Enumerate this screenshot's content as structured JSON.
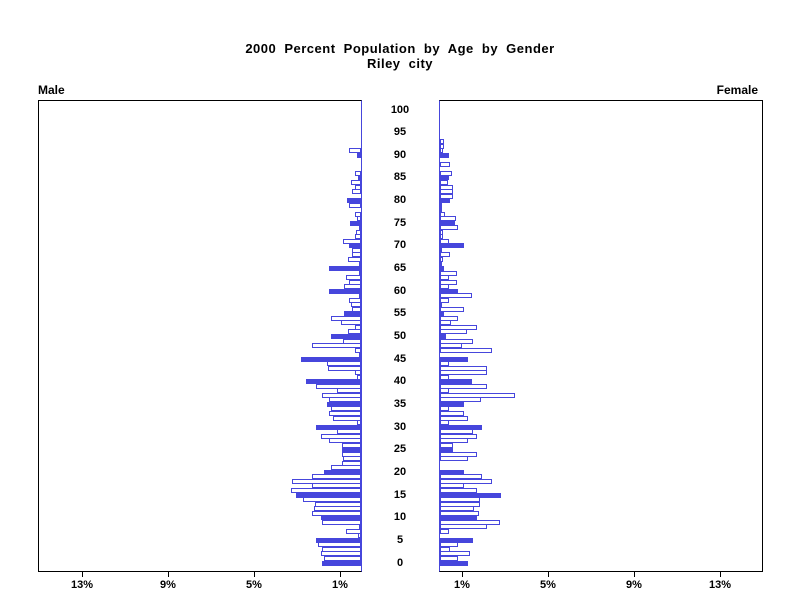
{
  "title": {
    "line1": "2000 Percent Population by Age by Gender",
    "line2": "Riley city"
  },
  "panels": {
    "male_label": "Male",
    "female_label": "Female"
  },
  "axes": {
    "age_tick_values": [
      0,
      5,
      10,
      15,
      20,
      25,
      30,
      35,
      40,
      45,
      50,
      55,
      60,
      65,
      70,
      75,
      80,
      85,
      90,
      95,
      100
    ],
    "age_tick_labels": [
      "0",
      "5",
      "10",
      "15",
      "20",
      "25",
      "30",
      "35",
      "40",
      "45",
      "50",
      "55",
      "60",
      "65",
      "70",
      "75",
      "80",
      "85",
      "90",
      "95",
      "100"
    ],
    "male_tick_percents": [
      13,
      9,
      5,
      1
    ],
    "male_tick_labels": [
      "13%",
      "9%",
      "5%",
      "1%"
    ],
    "female_tick_percents": [
      1,
      5,
      9,
      13
    ],
    "female_tick_labels": [
      "1%",
      "5%",
      "9%",
      "13%"
    ]
  },
  "colors": {
    "bar_blue": "#4646DC",
    "frame_black": "#000000",
    "background": "#FFFFFF"
  },
  "chart_data": {
    "type": "bar",
    "subtype": "population-pyramid",
    "title": "2000 Percent Population by Age by Gender",
    "subtitle": "Riley city",
    "xlabel_unit": "percent of population",
    "x_range_each_side": [
      0,
      15
    ],
    "x_ticks": [
      1,
      5,
      9,
      13
    ],
    "age_min": 0,
    "age_max": 100,
    "age_step": 1,
    "bar_style_rule": "ages divisible by 5 are solid filled bars; all other ages are hollow (white with blue outline)",
    "series": [
      {
        "name": "Male",
        "side": "left",
        "values": [
          1.8,
          1.7,
          1.85,
          1.8,
          2.0,
          2.1,
          0.15,
          0.7,
          0.1,
          1.8,
          1.85,
          2.3,
          2.2,
          2.15,
          2.7,
          3.0,
          3.25,
          2.3,
          3.2,
          2.3,
          1.7,
          1.4,
          0.9,
          0.85,
          0.9,
          0.9,
          0.9,
          1.5,
          1.85,
          1.1,
          2.1,
          0.2,
          1.3,
          1.5,
          1.4,
          1.6,
          1.5,
          1.8,
          1.1,
          2.1,
          2.55,
          0.2,
          0.3,
          1.55,
          1.6,
          2.8,
          0.1,
          0.3,
          2.3,
          0.85,
          1.4,
          0.6,
          0.3,
          0.95,
          1.4,
          0.8,
          0.4,
          0.45,
          0.55,
          0.1,
          1.5,
          0.8,
          0.55,
          0.7,
          0.1,
          1.5,
          0.1,
          0.6,
          0.4,
          0.4,
          0.55,
          0.85,
          0.3,
          0.25,
          0.1,
          0.5,
          0.2,
          0.3,
          0,
          0.55,
          0.65,
          0,
          0.4,
          0.3,
          0.45,
          0.15,
          0.3,
          0,
          0,
          0,
          0.2,
          0.55,
          0,
          0,
          0,
          0,
          0,
          0,
          0,
          0,
          0
        ]
      },
      {
        "name": "Female",
        "side": "right",
        "values": [
          1.3,
          0.85,
          1.4,
          0.45,
          0.85,
          1.55,
          0,
          0.4,
          2.2,
          2.8,
          1.7,
          1.8,
          1.6,
          1.85,
          1.85,
          2.85,
          1.7,
          1.1,
          2.4,
          1.95,
          1.1,
          0,
          0,
          1.3,
          1.7,
          0.6,
          0.6,
          1.3,
          1.7,
          1.55,
          1.95,
          0.4,
          1.3,
          1.1,
          0.4,
          1.1,
          1.9,
          3.5,
          0.4,
          2.2,
          1.5,
          0.4,
          2.2,
          2.2,
          0.4,
          1.3,
          0,
          2.4,
          1.0,
          1.55,
          0.3,
          1.25,
          1.7,
          0.5,
          0.85,
          0.2,
          1.1,
          0.1,
          0.4,
          1.5,
          0.85,
          0.4,
          0.8,
          0.4,
          0.8,
          0.2,
          0.1,
          0.15,
          0.45,
          0.1,
          1.1,
          0.4,
          0.15,
          0.15,
          0.85,
          0.7,
          0.75,
          0.25,
          0.1,
          0.1,
          0.45,
          0.6,
          0.6,
          0.6,
          0.35,
          0.4,
          0.55,
          0,
          0.45,
          0,
          0.4,
          0.15,
          0.2,
          0.2,
          0,
          0,
          0,
          0,
          0,
          0,
          0
        ]
      }
    ],
    "legend_position": "none",
    "grid": false
  }
}
